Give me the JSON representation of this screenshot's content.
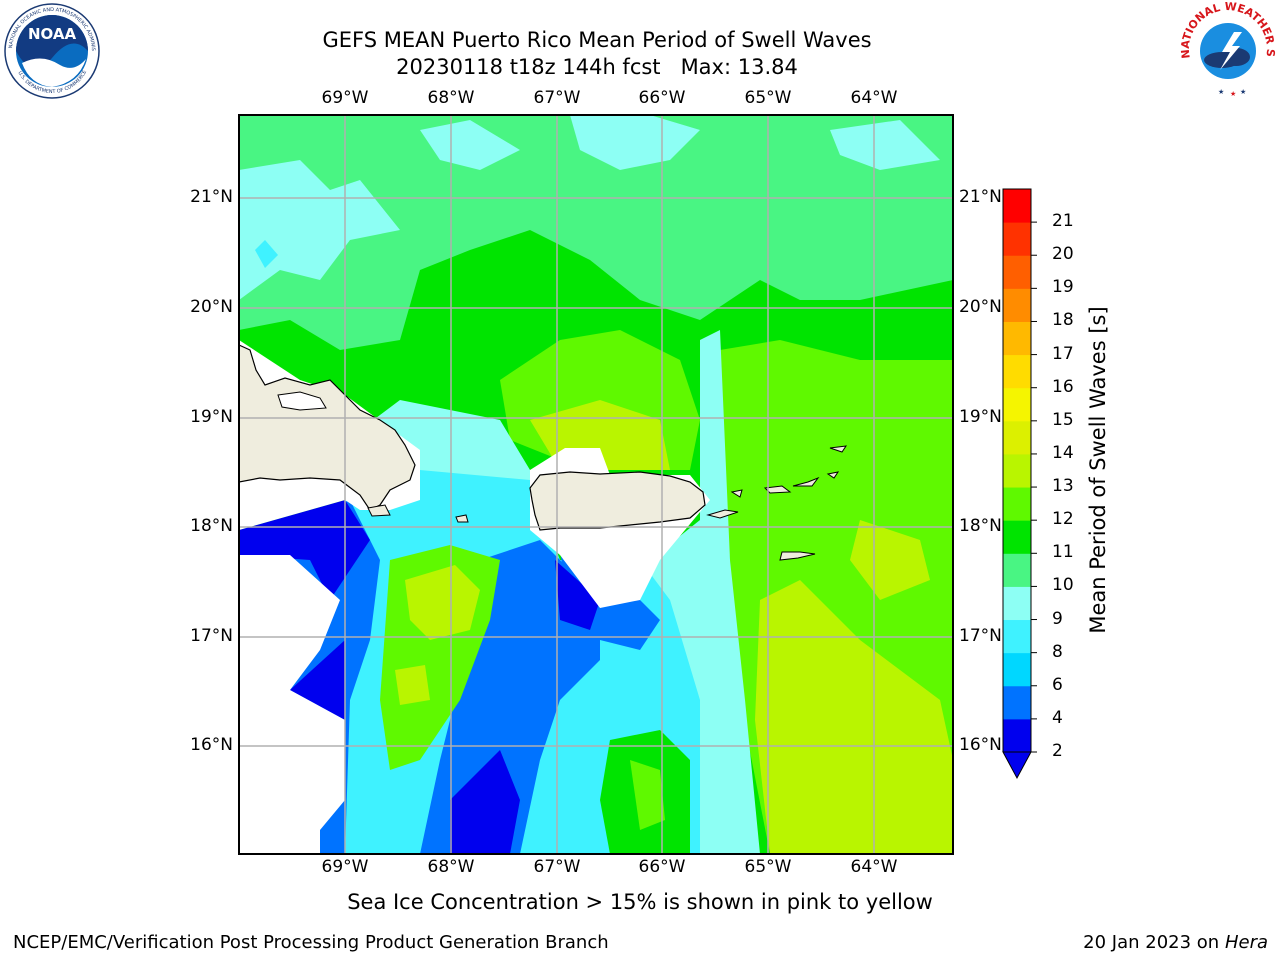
{
  "title": {
    "line1": "GEFS MEAN Puerto Rico Mean Period of Swell Waves",
    "line2": "20230118 t18z 144h fcst   Max: 13.84"
  },
  "logos": {
    "left": {
      "icon": "noaa-logo",
      "text": "NOAA",
      "ring_text": "NATIONAL OCEANIC AND ATMOSPHERIC ADMINISTRATION · U.S. DEPARTMENT OF COMMERCE"
    },
    "right": {
      "icon": "nws-logo",
      "ring_text": "NATIONAL WEATHER SERVICE"
    }
  },
  "map": {
    "lon_labels": [
      "69°W",
      "68°W",
      "67°W",
      "66°W",
      "65°W",
      "64°W"
    ],
    "lat_labels": [
      "21°N",
      "20°N",
      "19°N",
      "18°N",
      "17°N",
      "16°N"
    ],
    "land_color": "#efedde",
    "gridline_color": "#b0b0b0"
  },
  "colorbar": {
    "label": "Mean Period of Swell Waves [s]",
    "ticks": [
      "2",
      "4",
      "6",
      "8",
      "9",
      "10",
      "11",
      "12",
      "13",
      "14",
      "15",
      "16",
      "17",
      "18",
      "19",
      "20",
      "21"
    ],
    "colors": [
      "#0000ee",
      "#0073ff",
      "#00d7ff",
      "#3ff2ff",
      "#8dfff4",
      "#49f583",
      "#00e400",
      "#5ff900",
      "#b9f500",
      "#dcf000",
      "#f5f500",
      "#ffdc00",
      "#ffb900",
      "#ff8c00",
      "#ff5f00",
      "#ff3200",
      "#ff0000"
    ],
    "extend_color": "#0000ee"
  },
  "note": "Sea Ice Concentration > 15% is shown in pink to yellow",
  "footer": {
    "left": "NCEP/EMC/Verification Post Processing Product Generation Branch",
    "right_prefix": "20 Jan 2023 on ",
    "right_host": "Hera"
  }
}
